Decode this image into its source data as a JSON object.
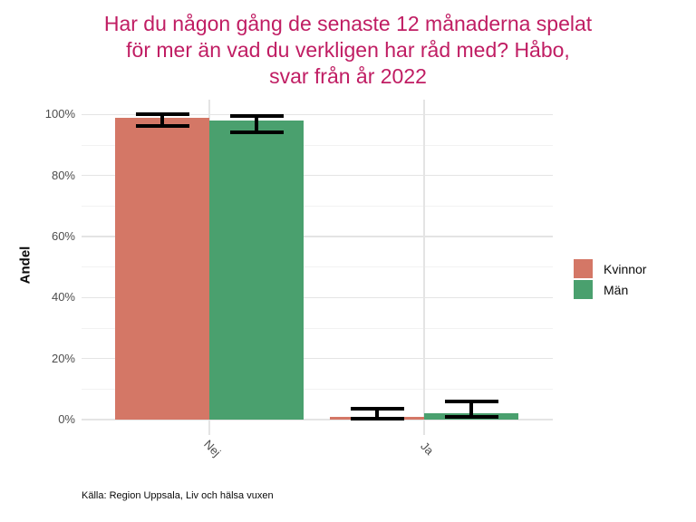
{
  "title": {
    "lines": [
      "Har du någon gång de senaste 12 månaderna spelat",
      "för mer än vad du verkligen har råd med? Håbo,",
      "svar från år 2022"
    ],
    "color": "#C01D63"
  },
  "chart_data": {
    "type": "bar",
    "title": "Har du någon gång de senaste 12 månaderna spelat för mer än vad du verkligen har råd med? Håbo, svar från år 2022",
    "categories": [
      "Nej",
      "Ja"
    ],
    "series": [
      {
        "name": "Kvinnor",
        "color": "#D47766",
        "values": [
          99,
          1
        ],
        "ci_low": [
          96.3,
          0.3
        ],
        "ci_high": [
          100,
          3.7
        ]
      },
      {
        "name": "Män",
        "color": "#4AA06E",
        "values": [
          98,
          2
        ],
        "ci_low": [
          94.3,
          0.8
        ],
        "ci_high": [
          99.5,
          5.9
        ]
      }
    ],
    "error_bars": true,
    "xlabel": "",
    "ylabel": "Andel",
    "ylim": [
      0,
      100
    ],
    "yticks_pct": [
      0,
      20,
      40,
      60,
      80,
      100
    ],
    "ytick_labels": [
      "0%",
      "20%",
      "40%",
      "60%",
      "80%",
      "100%"
    ],
    "grid": "major and minor horizontal, white background",
    "legend_position": "right",
    "caption": "Källa: Region Uppsala, Liv och hälsa vuxen"
  }
}
